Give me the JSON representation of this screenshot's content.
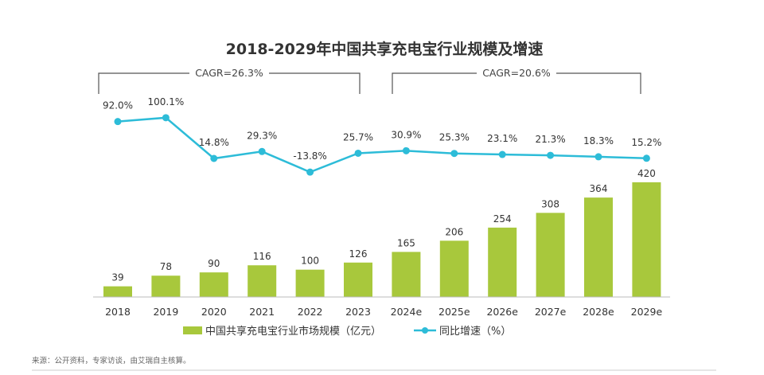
{
  "chart_data": {
    "type": "bar+line",
    "title": "2018-2029年中国共享充电宝行业规模及增速",
    "categories": [
      "2018",
      "2019",
      "2020",
      "2021",
      "2022",
      "2023",
      "2024e",
      "2025e",
      "2026e",
      "2027e",
      "2028e",
      "2029e"
    ],
    "series": [
      {
        "name": "中国共享充电宝行业市场规模（亿元）",
        "type": "bar",
        "color": "#a8c83c",
        "values": [
          39,
          78,
          90,
          116,
          100,
          126,
          165,
          206,
          254,
          308,
          364,
          420
        ]
      },
      {
        "name": "同比增速（%）",
        "type": "line",
        "color": "#2dbcd8",
        "values": [
          92.0,
          100.1,
          14.8,
          29.3,
          -13.8,
          25.7,
          30.9,
          25.3,
          23.1,
          21.3,
          18.3,
          15.2
        ],
        "labels": [
          "92.0%",
          "100.1%",
          "14.8%",
          "29.3%",
          "-13.8%",
          "25.7%",
          "30.9%",
          "25.3%",
          "23.1%",
          "21.3%",
          "18.3%",
          "15.2%"
        ]
      }
    ],
    "annotations": [
      {
        "text": "CAGR=26.3%",
        "from": "2018",
        "to": "2023"
      },
      {
        "text": "CAGR=20.6%",
        "from": "2024e",
        "to": "2029e"
      }
    ],
    "legend_position": "bottom",
    "grid": false
  },
  "source": "来源：公开资料，专家访谈，由艾瑞自主核算。"
}
